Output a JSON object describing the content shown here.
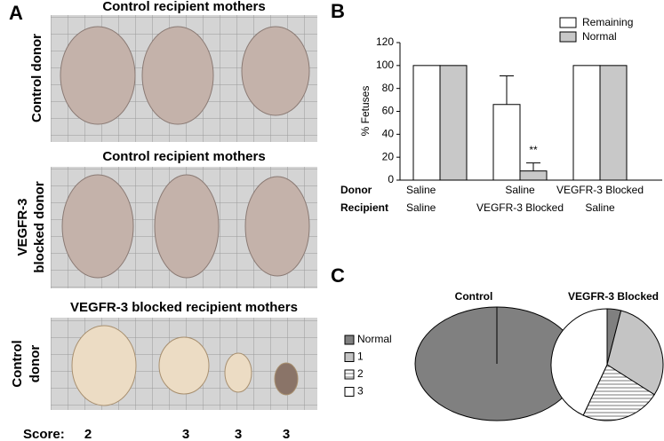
{
  "panel_a": {
    "letter": "A",
    "rows": [
      {
        "heading": "Control recipient mothers",
        "side_label": [
          "Control donor"
        ]
      },
      {
        "heading": "Control recipient mothers",
        "side_label": [
          "VEGFR-3",
          "blocked donor"
        ]
      },
      {
        "heading": "VEGFR-3 blocked recipient mothers",
        "side_label": [
          "Control",
          "donor"
        ]
      }
    ],
    "score_label": "Score:",
    "scores": [
      2,
      3,
      3,
      3
    ]
  },
  "panel_b": {
    "letter": "B"
  },
  "panel_c": {
    "letter": "C"
  },
  "chart_data": [
    {
      "type": "bar",
      "ylabel": "% Fetuses",
      "ylim": [
        0,
        120
      ],
      "yticks": [
        0,
        20,
        40,
        60,
        80,
        100,
        120
      ],
      "x_label_rows": [
        {
          "name": "Donor",
          "labels": [
            "Saline",
            "Saline",
            "VEGFR-3 Blocked"
          ]
        },
        {
          "name": "Recipient",
          "labels": [
            "Saline",
            "VEGFR-3 Blocked",
            "Saline"
          ]
        }
      ],
      "series": [
        {
          "name": "Remaining",
          "color": "#ffffff",
          "values": [
            100,
            66,
            100
          ],
          "errors": [
            0,
            25,
            0
          ]
        },
        {
          "name": "Normal",
          "color": "#c8c8c8",
          "values": [
            100,
            8,
            100
          ],
          "errors": [
            0,
            7,
            0
          ]
        }
      ],
      "annotation": "**"
    },
    {
      "type": "pie",
      "title": "Control",
      "values": [
        100
      ],
      "color": "#808080"
    },
    {
      "type": "pie",
      "title": "VEGFR-3 Blocked",
      "categories": [
        "Normal",
        "1",
        "2",
        "3"
      ],
      "values": [
        4,
        30,
        23,
        43
      ],
      "colors": [
        "#808080",
        "#c4c4c4",
        "url(#stripes)",
        "#ffffff"
      ]
    }
  ]
}
